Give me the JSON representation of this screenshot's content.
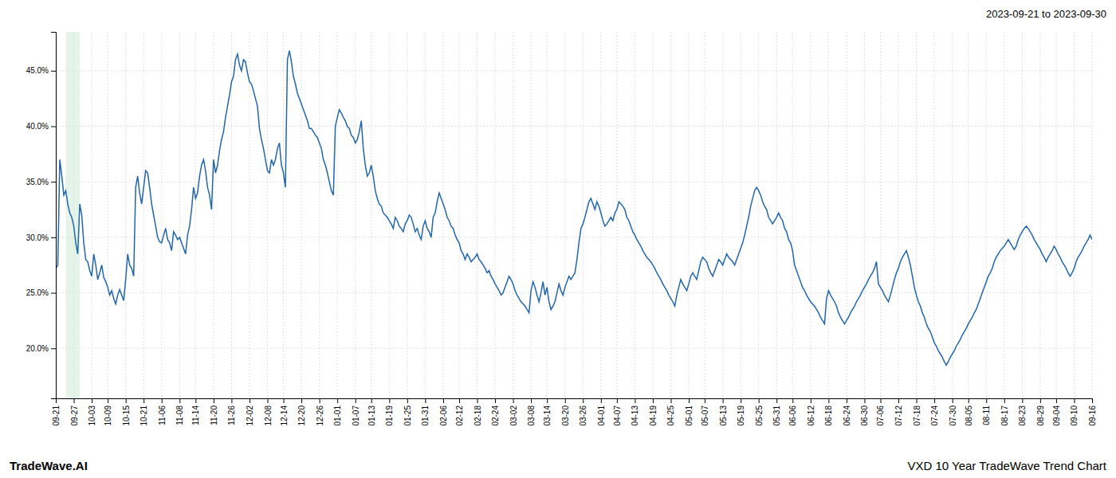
{
  "chart_data": {
    "type": "line",
    "title": "2023-09-21 to 2023-09-30",
    "annotations": [
      "TradeWave.AI",
      "VXD 10 Year TradeWave Trend Chart"
    ],
    "color": "#2166ac",
    "grid": true,
    "highlight": {
      "start": 5,
      "end": 12,
      "color": "#d4edda"
    },
    "ylim": [
      0.155,
      0.485
    ],
    "yticks": [
      {
        "value": 0.2,
        "label": "20.0%"
      },
      {
        "value": 0.25,
        "label": "25.0%"
      },
      {
        "value": 0.3,
        "label": "30.0%"
      },
      {
        "value": 0.35,
        "label": "35.0%"
      },
      {
        "value": 0.4,
        "label": "40.0%"
      },
      {
        "value": 0.45,
        "label": "45.0%"
      }
    ],
    "categories": [
      "09-21",
      null,
      null,
      null,
      null,
      null,
      null,
      null,
      null,
      "09-27",
      null,
      null,
      null,
      null,
      null,
      null,
      null,
      null,
      "10-03",
      null,
      null,
      null,
      null,
      null,
      null,
      null,
      "10-09",
      null,
      null,
      null,
      null,
      null,
      null,
      null,
      null,
      "10-15",
      null,
      null,
      null,
      null,
      null,
      null,
      null,
      null,
      "10-21",
      null,
      null,
      null,
      null,
      null,
      null,
      null,
      null,
      "11-06",
      null,
      null,
      null,
      null,
      null,
      null,
      null,
      null,
      "11-08",
      null,
      null,
      null,
      null,
      null,
      null,
      null,
      "11-14",
      null,
      null,
      null,
      null,
      null,
      null,
      null,
      null,
      "11-20",
      null,
      null,
      null,
      null,
      null,
      null,
      null,
      null,
      "11-26",
      null,
      null,
      null,
      null,
      null,
      null,
      null,
      null,
      "12-02",
      null,
      null,
      null,
      null,
      null,
      null,
      null,
      null,
      "12-08",
      null,
      null,
      null,
      null,
      null,
      null,
      null,
      "12-14",
      null,
      null,
      null,
      null,
      null,
      null,
      null,
      null,
      "12-20",
      null,
      null,
      null,
      null,
      null,
      null,
      null,
      null,
      "12-26",
      null,
      null,
      null,
      null,
      null,
      null,
      null,
      null,
      "01-01",
      null,
      null,
      null,
      null,
      null,
      null,
      null,
      null,
      "01-07",
      null,
      null,
      null,
      null,
      null,
      null,
      null,
      "01-13",
      null,
      null,
      null,
      null,
      null,
      null,
      null,
      null,
      "01-19",
      null,
      null,
      null,
      null,
      null,
      null,
      null,
      null,
      "01-25",
      null,
      null,
      null,
      null,
      null,
      null,
      null,
      null,
      "01-31",
      null,
      null,
      null,
      null,
      null,
      null,
      null,
      null,
      "02-06",
      null,
      null,
      null,
      null,
      null,
      null,
      null,
      "02-12",
      null,
      null,
      null,
      null,
      null,
      null,
      null,
      null,
      "02-18",
      null,
      null,
      null,
      null,
      null,
      null,
      null,
      null,
      "02-24",
      null,
      null,
      null,
      null,
      null,
      null,
      null,
      null,
      "03-02",
      null,
      null,
      null,
      null,
      null,
      null,
      null,
      null,
      "03-08",
      null,
      null,
      null,
      null,
      null,
      null,
      null,
      "03-14",
      null,
      null,
      null,
      null,
      null,
      null,
      null,
      null,
      "03-20",
      null,
      null,
      null,
      null,
      null,
      null,
      null,
      null,
      "03-26",
      null,
      null,
      null,
      null,
      null,
      null,
      null,
      null,
      "04-01",
      null,
      null,
      null,
      null,
      null,
      null,
      null,
      "04-07",
      null,
      null,
      null,
      null,
      null,
      null,
      null,
      null,
      "04-13",
      null,
      null,
      null,
      null,
      null,
      null,
      null,
      null,
      "04-19",
      null,
      null,
      null,
      null,
      null,
      null,
      null,
      null,
      "04-25",
      null,
      null,
      null,
      null,
      null,
      null,
      null,
      null,
      "05-01",
      null,
      null,
      null,
      null,
      null,
      null,
      null,
      "05-07",
      null,
      null,
      null,
      null,
      null,
      null,
      null,
      null,
      "05-13",
      null,
      null,
      null,
      null,
      null,
      null,
      null,
      null,
      "05-19",
      null,
      null,
      null,
      null,
      null,
      null,
      null,
      null,
      "05-25",
      null,
      null,
      null,
      null,
      null,
      null,
      null,
      null,
      "05-31",
      null,
      null,
      null,
      null,
      null,
      null,
      null,
      "06-06",
      null,
      null,
      null,
      null,
      null,
      null,
      null,
      null,
      "06-12",
      null,
      null,
      null,
      null,
      null,
      null,
      null,
      null,
      "06-18",
      null,
      null,
      null,
      null,
      null,
      null,
      null,
      null,
      "06-24",
      null,
      null,
      null,
      null,
      null,
      null,
      null,
      null,
      "06-30",
      null,
      null,
      null,
      null,
      null,
      null,
      null,
      "07-06",
      null,
      null,
      null,
      null,
      null,
      null,
      null,
      null,
      "07-12",
      null,
      null,
      null,
      null,
      null,
      null,
      null,
      null,
      "07-18",
      null,
      null,
      null,
      null,
      null,
      null,
      null,
      null,
      "07-24",
      null,
      null,
      null,
      null,
      null,
      null,
      null,
      null,
      "07-30",
      null,
      null,
      null,
      null,
      null,
      null,
      null,
      "08-05",
      null,
      null,
      null,
      null,
      null,
      null,
      null,
      null,
      "08-11",
      null,
      null,
      null,
      null,
      null,
      null,
      null,
      null,
      "08-17",
      null,
      null,
      null,
      null,
      null,
      null,
      null,
      null,
      "08-23",
      null,
      null,
      null,
      null,
      null,
      null,
      null,
      null,
      "08-29",
      null,
      null,
      null,
      null,
      null,
      null,
      null,
      "09-04",
      null,
      null,
      null,
      null,
      null,
      null,
      null,
      null,
      "09-10",
      null,
      null,
      null,
      null,
      null,
      null,
      null,
      null,
      "09-16"
    ],
    "values": [
      0.272,
      0.275,
      0.37,
      0.355,
      0.338,
      0.342,
      0.33,
      0.322,
      0.318,
      0.31,
      0.295,
      0.285,
      0.33,
      0.32,
      0.295,
      0.28,
      0.278,
      0.27,
      0.265,
      0.285,
      0.275,
      0.262,
      0.268,
      0.275,
      0.264,
      0.26,
      0.255,
      0.248,
      0.252,
      0.245,
      0.24,
      0.248,
      0.253,
      0.248,
      0.243,
      0.262,
      0.285,
      0.275,
      0.272,
      0.265,
      0.345,
      0.355,
      0.34,
      0.33,
      0.345,
      0.36,
      0.358,
      0.345,
      0.33,
      0.32,
      0.31,
      0.3,
      0.296,
      0.295,
      0.302,
      0.308,
      0.298,
      0.295,
      0.288,
      0.305,
      0.302,
      0.298,
      0.3,
      0.295,
      0.29,
      0.285,
      0.302,
      0.31,
      0.325,
      0.345,
      0.335,
      0.34,
      0.355,
      0.365,
      0.37,
      0.36,
      0.345,
      0.338,
      0.325,
      0.37,
      0.358,
      0.365,
      0.378,
      0.388,
      0.395,
      0.408,
      0.418,
      0.428,
      0.44,
      0.445,
      0.46,
      0.465,
      0.455,
      0.45,
      0.46,
      0.458,
      0.448,
      0.44,
      0.438,
      0.432,
      0.425,
      0.418,
      0.398,
      0.388,
      0.38,
      0.37,
      0.36,
      0.358,
      0.37,
      0.365,
      0.37,
      0.38,
      0.385,
      0.365,
      0.358,
      0.345,
      0.46,
      0.468,
      0.458,
      0.445,
      0.438,
      0.43,
      0.425,
      0.42,
      0.415,
      0.41,
      0.405,
      0.398,
      0.398,
      0.395,
      0.392,
      0.39,
      0.385,
      0.38,
      0.37,
      0.365,
      0.358,
      0.35,
      0.342,
      0.338,
      0.4,
      0.408,
      0.415,
      0.412,
      0.408,
      0.405,
      0.4,
      0.398,
      0.392,
      0.39,
      0.385,
      0.388,
      0.395,
      0.405,
      0.38,
      0.365,
      0.355,
      0.358,
      0.365,
      0.355,
      0.342,
      0.335,
      0.33,
      0.328,
      0.322,
      0.32,
      0.318,
      0.315,
      0.312,
      0.308,
      0.318,
      0.315,
      0.31,
      0.308,
      0.305,
      0.312,
      0.315,
      0.32,
      0.318,
      0.312,
      0.305,
      0.308,
      0.302,
      0.298,
      0.31,
      0.315,
      0.308,
      0.305,
      0.3,
      0.318,
      0.322,
      0.332,
      0.34,
      0.335,
      0.33,
      0.325,
      0.318,
      0.315,
      0.31,
      0.308,
      0.302,
      0.298,
      0.295,
      0.288,
      0.285,
      0.28,
      0.285,
      0.282,
      0.278,
      0.28,
      0.282,
      0.285,
      0.28,
      0.278,
      0.275,
      0.272,
      0.268,
      0.27,
      0.265,
      0.262,
      0.258,
      0.255,
      0.252,
      0.248,
      0.25,
      0.255,
      0.26,
      0.265,
      0.262,
      0.258,
      0.252,
      0.248,
      0.245,
      0.242,
      0.24,
      0.238,
      0.235,
      0.232,
      0.252,
      0.26,
      0.255,
      0.248,
      0.242,
      0.25,
      0.26,
      0.248,
      0.255,
      0.242,
      0.235,
      0.238,
      0.242,
      0.25,
      0.258,
      0.252,
      0.248,
      0.255,
      0.26,
      0.265,
      0.262,
      0.265,
      0.268,
      0.28,
      0.295,
      0.308,
      0.312,
      0.318,
      0.325,
      0.332,
      0.335,
      0.33,
      0.325,
      0.332,
      0.328,
      0.322,
      0.315,
      0.31,
      0.312,
      0.315,
      0.318,
      0.315,
      0.322,
      0.325,
      0.332,
      0.33,
      0.328,
      0.325,
      0.318,
      0.315,
      0.31,
      0.305,
      0.302,
      0.298,
      0.295,
      0.292,
      0.288,
      0.285,
      0.282,
      0.28,
      0.278,
      0.275,
      0.272,
      0.268,
      0.265,
      0.262,
      0.258,
      0.255,
      0.252,
      0.248,
      0.245,
      0.242,
      0.238,
      0.248,
      0.255,
      0.262,
      0.258,
      0.255,
      0.252,
      0.258,
      0.265,
      0.268,
      0.265,
      0.262,
      0.27,
      0.278,
      0.282,
      0.28,
      0.278,
      0.272,
      0.268,
      0.265,
      0.27,
      0.275,
      0.28,
      0.278,
      0.275,
      0.28,
      0.285,
      0.282,
      0.28,
      0.278,
      0.275,
      0.28,
      0.285,
      0.29,
      0.295,
      0.302,
      0.31,
      0.318,
      0.328,
      0.335,
      0.342,
      0.345,
      0.342,
      0.338,
      0.332,
      0.328,
      0.325,
      0.318,
      0.315,
      0.312,
      0.315,
      0.318,
      0.322,
      0.318,
      0.315,
      0.308,
      0.305,
      0.298,
      0.295,
      0.288,
      0.275,
      0.27,
      0.265,
      0.26,
      0.255,
      0.252,
      0.248,
      0.245,
      0.242,
      0.24,
      0.238,
      0.235,
      0.232,
      0.228,
      0.225,
      0.222,
      0.245,
      0.252,
      0.248,
      0.245,
      0.242,
      0.238,
      0.232,
      0.228,
      0.225,
      0.222,
      0.225,
      0.228,
      0.232,
      0.235,
      0.238,
      0.242,
      0.245,
      0.248,
      0.252,
      0.255,
      0.258,
      0.262,
      0.265,
      0.268,
      0.272,
      0.278,
      0.258,
      0.255,
      0.252,
      0.248,
      0.245,
      0.242,
      0.248,
      0.255,
      0.262,
      0.268,
      0.272,
      0.278,
      0.282,
      0.285,
      0.288,
      0.282,
      0.275,
      0.265,
      0.255,
      0.248,
      0.242,
      0.238,
      0.232,
      0.228,
      0.222,
      0.218,
      0.215,
      0.21,
      0.205,
      0.202,
      0.198,
      0.195,
      0.192,
      0.188,
      0.185,
      0.188,
      0.192,
      0.195,
      0.198,
      0.202,
      0.205,
      0.208,
      0.212,
      0.215,
      0.218,
      0.222,
      0.225,
      0.228,
      0.232,
      0.235,
      0.24,
      0.245,
      0.25,
      0.255,
      0.26,
      0.265,
      0.268,
      0.272,
      0.278,
      0.282,
      0.285,
      0.288,
      0.29,
      0.292,
      0.295,
      0.298,
      0.295,
      0.292,
      0.289,
      0.292,
      0.298,
      0.302,
      0.305,
      0.308,
      0.31,
      0.308,
      0.305,
      0.302,
      0.298,
      0.295,
      0.292,
      0.289,
      0.285,
      0.282,
      0.278,
      0.282,
      0.285,
      0.288,
      0.292,
      0.289,
      0.285,
      0.282,
      0.278,
      0.275,
      0.272,
      0.268,
      0.265,
      0.268,
      0.272,
      0.278,
      0.282,
      0.285,
      0.288,
      0.292,
      0.295,
      0.298,
      0.302,
      0.298
    ]
  }
}
